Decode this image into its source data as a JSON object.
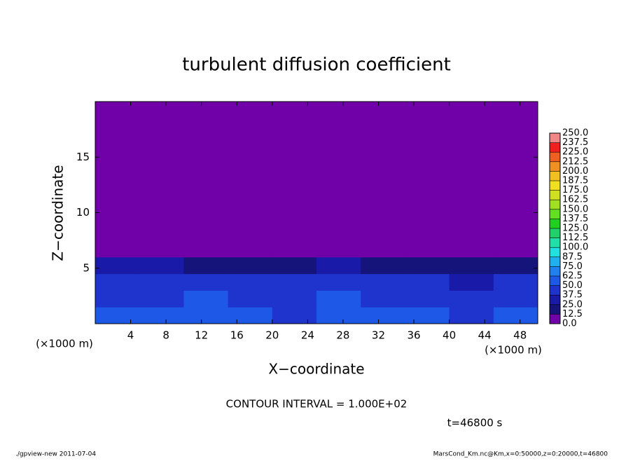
{
  "chart_data": {
    "type": "heatmap",
    "title": "turbulent diffusion coefficient",
    "x_label": "X−coordinate",
    "y_label": "Z−coordinate",
    "x_unit": "(×1000 m)",
    "y_unit": "(×1000 m)",
    "xlim": [
      0,
      50
    ],
    "ylim": [
      0,
      20
    ],
    "xticks": [
      4,
      8,
      12,
      16,
      20,
      24,
      28,
      32,
      36,
      40,
      44,
      48
    ],
    "yticks": [
      5,
      10,
      15
    ],
    "x_edges": [
      0,
      5,
      10,
      15,
      20,
      25,
      30,
      35,
      40,
      45,
      50
    ],
    "y_edges": [
      0,
      1.5,
      3,
      4.5,
      6,
      20
    ],
    "values": [
      [
        55,
        52,
        58,
        50,
        48,
        56,
        50,
        52,
        48,
        54
      ],
      [
        48,
        45,
        50,
        44,
        46,
        50,
        45,
        44,
        42,
        46
      ],
      [
        42,
        38,
        44,
        40,
        38,
        46,
        40,
        38,
        36,
        40
      ],
      [
        28,
        26,
        24,
        18,
        22,
        28,
        20,
        22,
        18,
        24
      ],
      [
        3,
        3,
        3,
        3,
        4,
        3,
        3,
        3,
        3,
        3
      ]
    ],
    "levels": [
      {
        "value": 0,
        "label": "0.0"
      },
      {
        "value": 12.5,
        "label": "12.5"
      },
      {
        "value": 25,
        "label": "25.0"
      },
      {
        "value": 37.5,
        "label": "37.5"
      },
      {
        "value": 50,
        "label": "50.0"
      },
      {
        "value": 62.5,
        "label": "62.5"
      },
      {
        "value": 75,
        "label": "75.0"
      },
      {
        "value": 87.5,
        "label": "87.5"
      },
      {
        "value": 100,
        "label": "100.0"
      },
      {
        "value": 112.5,
        "label": "112.5"
      },
      {
        "value": 125,
        "label": "125.0"
      },
      {
        "value": 137.5,
        "label": "137.5"
      },
      {
        "value": 150,
        "label": "150.0"
      },
      {
        "value": 162.5,
        "label": "162.5"
      },
      {
        "value": 175,
        "label": "175.0"
      },
      {
        "value": 187.5,
        "label": "187.5"
      },
      {
        "value": 200,
        "label": "200.0"
      },
      {
        "value": 212.5,
        "label": "212.5"
      },
      {
        "value": 225,
        "label": "225.0"
      },
      {
        "value": 237.5,
        "label": "237.5"
      },
      {
        "value": 250,
        "label": "250.0"
      }
    ],
    "colors": [
      "#7000a8",
      "#14147a",
      "#1a1aa8",
      "#1f34cc",
      "#1e58e6",
      "#2080f0",
      "#20b0f0",
      "#20e0e0",
      "#20e0a8",
      "#20d068",
      "#20d020",
      "#60e020",
      "#a0e020",
      "#d0e020",
      "#f0e020",
      "#f0c020",
      "#f09020",
      "#f06020",
      "#f02020",
      "#f08888"
    ],
    "annotation": "CONTOUR INTERVAL = 1.000E+02",
    "time_label": "t=46800 s",
    "footer_left": "./gpview-new  2011-07-04",
    "footer_right": "MarsCond_Km.nc@Km,x=0:50000,z=0:20000,t=46800"
  }
}
